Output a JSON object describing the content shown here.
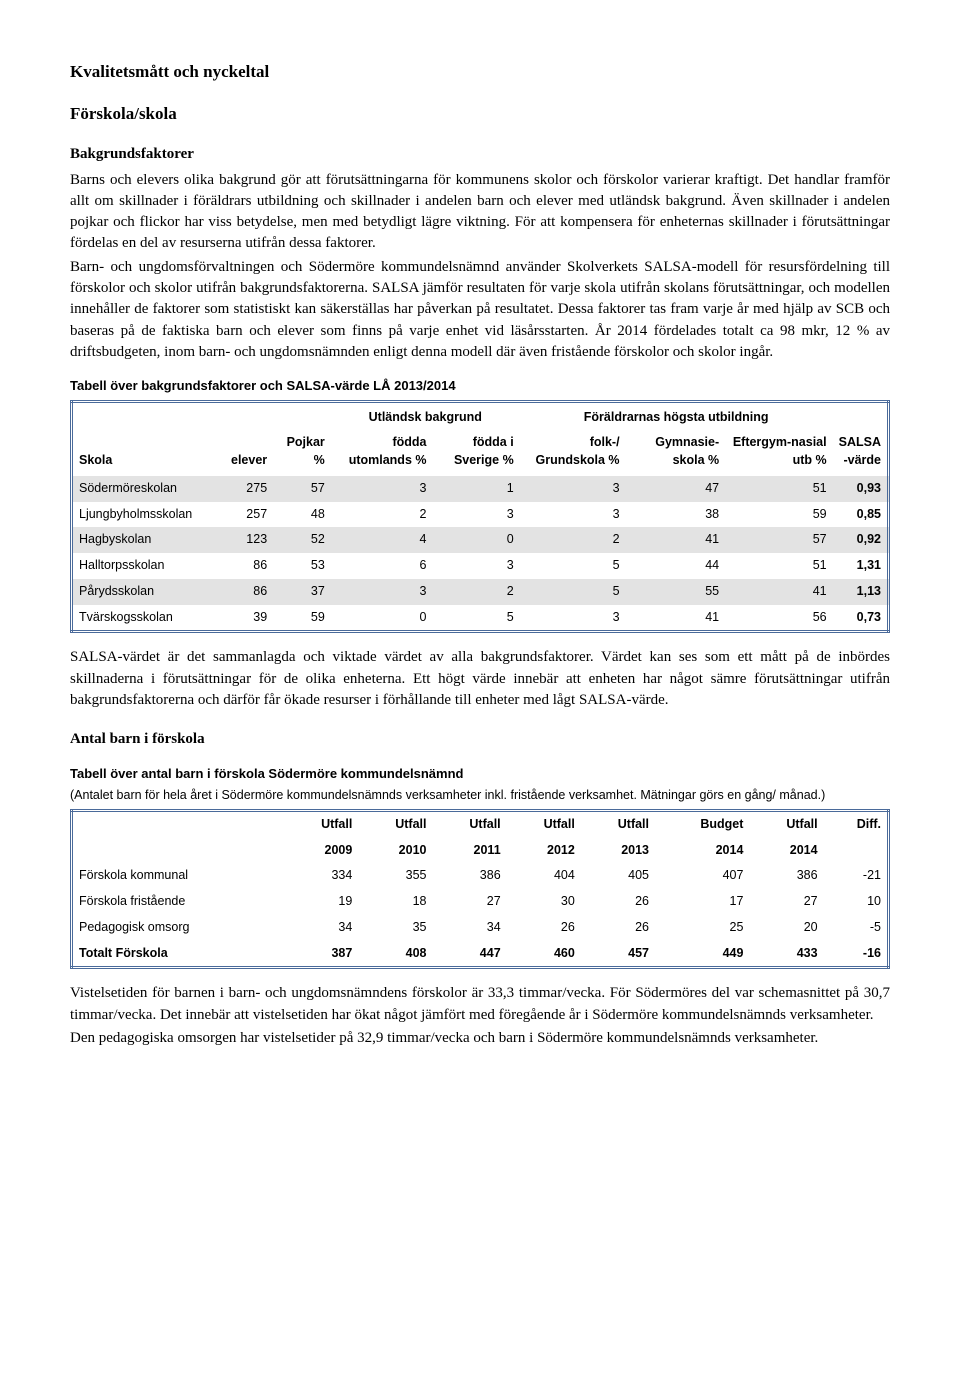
{
  "headings": {
    "h1": "Kvalitetsmått och nyckeltal",
    "h2": "Förskola/skola",
    "h3a": "Bakgrundsfaktorer",
    "h3b": "Antal barn i förskola"
  },
  "paragraphs": {
    "p1": "Barns och elevers olika bakgrund gör att förutsättningarna för kommunens skolor och förskolor varierar kraftigt. Det handlar framför allt om skillnader i föräldrars utbildning och skillnader i andelen barn och elever med utländsk bakgrund. Även skillnader i andelen pojkar och flickor har viss betydelse, men med betydligt lägre viktning. För att kompensera för enheternas skillnader i förutsättningar fördelas en del av resurserna utifrån dessa faktorer.",
    "p2": "Barn- och ungdomsförvaltningen och Södermöre kommundelsnämnd använder Skolverkets SALSA-modell för resursfördelning till förskolor och skolor utifrån bakgrundsfaktorerna. SALSA jämför resultaten för varje skola utifrån skolans förutsättningar, och modellen innehåller de faktorer som statistiskt kan säkerställas har påverkan på resultatet. Dessa faktorer tas fram varje år med hjälp av SCB och baseras på de faktiska barn och elever som finns på varje enhet vid läsårsstarten. År 2014 fördelades totalt ca 98 mkr, 12 % av driftsbudgeten, inom barn- och ungdomsnämnden enligt denna modell där även fristående förskolor och skolor ingår.",
    "p3": "SALSA-värdet är det sammanlagda och viktade värdet av alla bakgrundsfaktorer. Värdet kan ses som ett mått på de inbördes skillnaderna i förutsättningar för de olika enheterna. Ett högt värde innebär att enheten har något sämre förutsättningar utifrån bakgrundsfaktorerna och därför får ökade resurser i förhållande till enheter med lågt SALSA-värde.",
    "p4": "Vistelsetiden för barnen i barn- och ungdomsnämndens förskolor är 33,3 timmar/vecka. För Södermöres del var schemasnittet på 30,7 timmar/vecka. Det innebär att vistelsetiden har ökat något jämfört med föregående år i Södermöre kommundelsnämnds verksamheter.",
    "p5": "Den pedagogiska omsorgen har vistelsetider på 32,9 timmar/vecka och barn i Södermöre kommundelsnämnds verksamheter."
  },
  "table1": {
    "title": "Tabell över bakgrundsfaktorer och SALSA-värde LÅ 2013/2014",
    "group_heads": {
      "utlandsk": "Utländsk bakgrund",
      "foraldrar": "Föräldrarnas högsta utbildning"
    },
    "cols": {
      "skola": "Skola",
      "elever": "elever",
      "pojkar": "Pojkar %",
      "fodda_utomlands": "födda utomlands %",
      "fodda_sverige": "födda i Sverige %",
      "folk_grund": "folk-/ Grundskola %",
      "gymnasie": "Gymnasie-skola %",
      "eftergym": "Eftergym-nasial utb %",
      "salsa": "SALSA",
      "salsa2": "-värde"
    },
    "rows": [
      {
        "skola": "Södermöreskolan",
        "elever": "275",
        "pojkar": "57",
        "fu": "3",
        "fs": "1",
        "fg": "3",
        "gy": "47",
        "eg": "51",
        "salsa": "0,93",
        "grey": true
      },
      {
        "skola": "Ljungbyholmsskolan",
        "elever": "257",
        "pojkar": "48",
        "fu": "2",
        "fs": "3",
        "fg": "3",
        "gy": "38",
        "eg": "59",
        "salsa": "0,85",
        "grey": false
      },
      {
        "skola": "Hagbyskolan",
        "elever": "123",
        "pojkar": "52",
        "fu": "4",
        "fs": "0",
        "fg": "2",
        "gy": "41",
        "eg": "57",
        "salsa": "0,92",
        "grey": true
      },
      {
        "skola": "Halltorpsskolan",
        "elever": "86",
        "pojkar": "53",
        "fu": "6",
        "fs": "3",
        "fg": "5",
        "gy": "44",
        "eg": "51",
        "salsa": "1,31",
        "grey": false
      },
      {
        "skola": "Pårydsskolan",
        "elever": "86",
        "pojkar": "37",
        "fu": "3",
        "fs": "2",
        "fg": "5",
        "gy": "55",
        "eg": "41",
        "salsa": "1,13",
        "grey": true
      },
      {
        "skola": "Tvärskogsskolan",
        "elever": "39",
        "pojkar": "59",
        "fu": "0",
        "fs": "5",
        "fg": "3",
        "gy": "41",
        "eg": "56",
        "salsa": "0,73",
        "grey": false
      }
    ]
  },
  "table2": {
    "title": "Tabell över antal barn i förskola Södermöre kommundelsnämnd",
    "subtitle": "(Antalet barn för hela året i Södermöre kommundelsnämnds verksamheter inkl. fristående verksamhet. Mätningar görs en gång/ månad.)",
    "head1": [
      "Utfall",
      "Utfall",
      "Utfall",
      "Utfall",
      "Utfall",
      "Budget",
      "Utfall",
      "Diff."
    ],
    "head2": [
      "2009",
      "2010",
      "2011",
      "2012",
      "2013",
      "2014",
      "2014",
      ""
    ],
    "rows": [
      {
        "label": "Förskola kommunal",
        "vals": [
          "334",
          "355",
          "386",
          "404",
          "405",
          "407",
          "386",
          "-21"
        ]
      },
      {
        "label": "Förskola fristående",
        "vals": [
          "19",
          "18",
          "27",
          "30",
          "26",
          "17",
          "27",
          "10"
        ]
      },
      {
        "label": "Pedagogisk omsorg",
        "vals": [
          "34",
          "35",
          "34",
          "26",
          "26",
          "25",
          "20",
          "-5"
        ]
      },
      {
        "label": "Totalt Förskola",
        "vals": [
          "387",
          "408",
          "447",
          "460",
          "457",
          "449",
          "433",
          "-16"
        ],
        "bold": true
      }
    ]
  },
  "styling": {
    "border_color": "#4a6a9a",
    "grey_row": "#e3e3e3",
    "body_font": "Georgia",
    "table_font": "Arial"
  }
}
